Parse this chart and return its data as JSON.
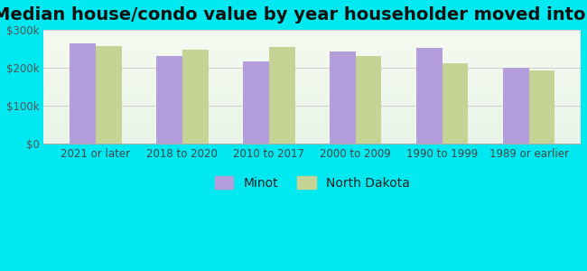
{
  "title": "Median house/condo value by year householder moved into unit",
  "categories": [
    "2021 or later",
    "2018 to 2020",
    "2010 to 2017",
    "2000 to 2009",
    "1990 to 1999",
    "1989 or earlier"
  ],
  "minot_values": [
    265000,
    232000,
    218000,
    244000,
    252000,
    199000
  ],
  "nd_values": [
    257000,
    248000,
    255000,
    232000,
    211000,
    192000
  ],
  "minot_color": "#b39ddb",
  "nd_color": "#c5d494",
  "background_color": "#00e8f0",
  "plot_bg_top": "#f5faf0",
  "plot_bg_bottom": "#e8f5e8",
  "ylim": [
    0,
    300000
  ],
  "yticks": [
    0,
    100000,
    200000,
    300000
  ],
  "ytick_labels": [
    "$0",
    "$100k",
    "$200k",
    "$300k"
  ],
  "legend_labels": [
    "Minot",
    "North Dakota"
  ],
  "title_fontsize": 14,
  "tick_fontsize": 8.5,
  "legend_fontsize": 10,
  "bar_width": 0.3
}
